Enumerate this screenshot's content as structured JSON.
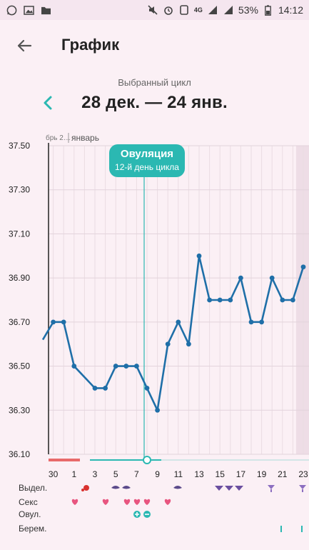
{
  "status_bar": {
    "battery": "53%",
    "time": "14:12",
    "network": "4G"
  },
  "header": {
    "title": "График"
  },
  "cycle": {
    "label": "Выбранный цикл",
    "range": "28 дек. — 24 янв."
  },
  "chart_data": {
    "type": "line",
    "month_labels": [
      "брь 2…",
      "январь"
    ],
    "x": [
      "29",
      "30",
      "31",
      "1",
      "2",
      "3",
      "4",
      "5",
      "6",
      "7",
      "8",
      "9",
      "10",
      "11",
      "12",
      "13",
      "14",
      "15",
      "16",
      "17",
      "18",
      "19",
      "20",
      "21",
      "22",
      "23"
    ],
    "x_tick_labels": [
      "30",
      "1",
      "3",
      "5",
      "7",
      "9",
      "11",
      "13",
      "15",
      "17",
      "19",
      "21",
      "23"
    ],
    "y_tick_labels": [
      "37.50",
      "37.30",
      "37.10",
      "36.90",
      "36.70",
      "36.50",
      "36.30",
      "36.10"
    ],
    "values": [
      36.62,
      36.7,
      36.7,
      36.5,
      null,
      36.4,
      36.4,
      36.5,
      36.5,
      36.5,
      36.4,
      36.3,
      36.6,
      36.7,
      36.6,
      37.0,
      36.8,
      36.8,
      36.8,
      36.9,
      36.7,
      36.7,
      36.9,
      36.8,
      36.8,
      36.95
    ],
    "ylim": [
      36.1,
      37.5
    ],
    "grid": true,
    "line_color": "#1f6fa8",
    "ovulation_color": "#2bb8b2",
    "period_color": "#e86a6a"
  },
  "ovulation": {
    "title": "Овуляция",
    "subtitle": "12-й день цикла",
    "day": "8"
  },
  "rows": [
    {
      "label": "Выдел."
    },
    {
      "label": "Секс"
    },
    {
      "label": "Овул."
    },
    {
      "label": "Берем."
    }
  ]
}
